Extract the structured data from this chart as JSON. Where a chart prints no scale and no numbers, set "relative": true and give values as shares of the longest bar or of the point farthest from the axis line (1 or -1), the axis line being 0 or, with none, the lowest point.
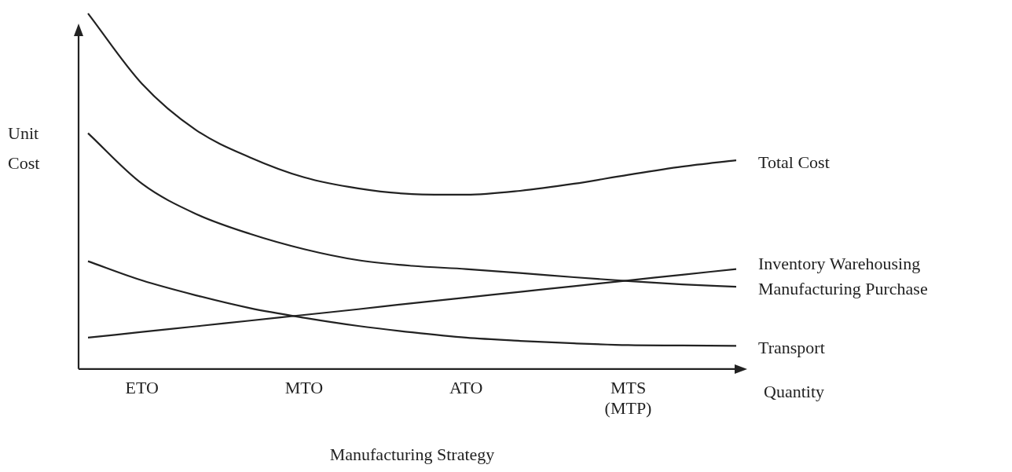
{
  "chart_data": {
    "type": "line",
    "relative": true,
    "xlabel": "Manufacturing Strategy",
    "ylabel": "Unit Cost",
    "categories": [
      null,
      "ETO",
      null,
      null,
      "MTO",
      null,
      null,
      "ATO",
      null,
      null,
      "MTS (MTP)",
      null,
      null
    ],
    "annotations": [
      "Quantity"
    ],
    "grid": false,
    "legend": false,
    "marker": "none",
    "line_style": "solid",
    "series": [
      {
        "name": "Total Cost",
        "color": "#222222",
        "values": [
          1.0,
          0.802,
          0.672,
          0.595,
          0.539,
          0.508,
          0.492,
          0.49,
          0.501,
          0.521,
          0.546,
          0.569,
          0.587
        ]
      },
      {
        "name": "Inventory Warehousing",
        "color": "#222222",
        "values": [
          0.088,
          0.104,
          0.12,
          0.136,
          0.152,
          0.168,
          0.185,
          0.201,
          0.217,
          0.233,
          0.249,
          0.265,
          0.281
        ]
      },
      {
        "name": "Manufacturing Purchase",
        "color": "#222222",
        "values": [
          0.663,
          0.521,
          0.436,
          0.38,
          0.337,
          0.306,
          0.29,
          0.281,
          0.27,
          0.258,
          0.247,
          0.238,
          0.231
        ]
      },
      {
        "name": "Transport",
        "color": "#222222",
        "values": [
          0.303,
          0.249,
          0.207,
          0.171,
          0.144,
          0.121,
          0.103,
          0.088,
          0.079,
          0.072,
          0.067,
          0.066,
          0.065
        ]
      }
    ]
  }
}
